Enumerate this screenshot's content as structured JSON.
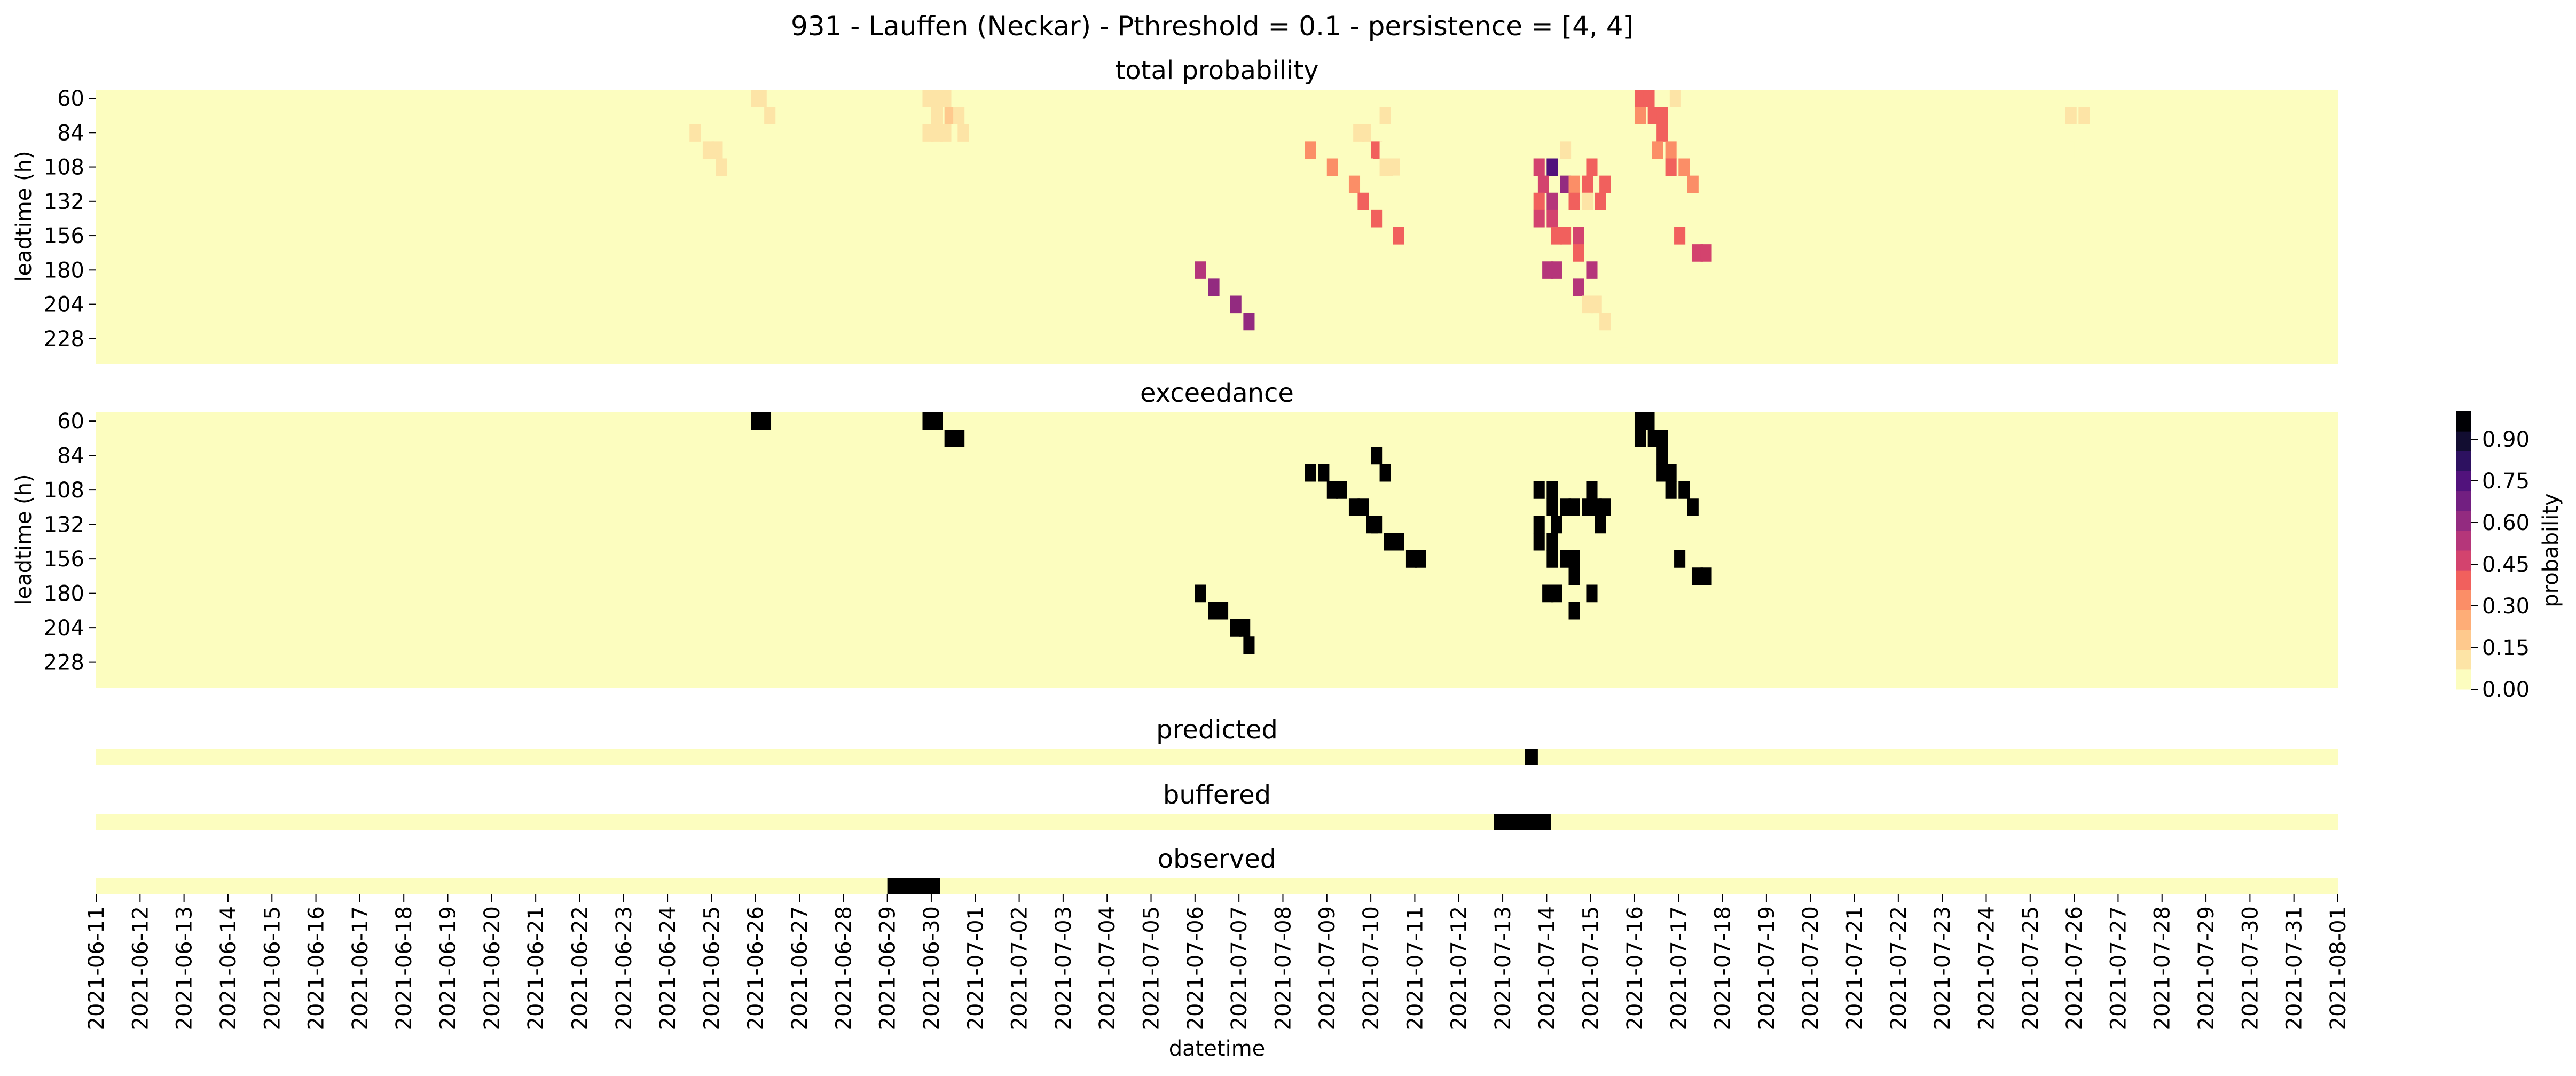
{
  "title": "931 - Lauffen (Neckar) - Pthreshold = 0.1 - persistence = [4, 4]",
  "colors": {
    "background_cell": "#fcfdbf",
    "binary_on": "#000000",
    "colormap": [
      "#fcfdbf",
      "#fde4a6",
      "#fec98d",
      "#fead77",
      "#fb8e67",
      "#f1605d",
      "#d3436e",
      "#b5367a",
      "#932b80",
      "#721f81",
      "#51127c",
      "#2d1160",
      "#120d31",
      "#000004"
    ]
  },
  "chart_data": [
    {
      "type": "heatmap",
      "title": "total probability",
      "ylabel": "leadtime (h)",
      "yticks": [
        "60",
        "84",
        "108",
        "132",
        "156",
        "180",
        "204",
        "228"
      ],
      "leadtime_range_h": [
        60,
        240
      ],
      "leadtime_step_h": 12,
      "time_range": [
        "2021-06-11",
        "2021-08-01"
      ],
      "cells": [
        {
          "day": 14.9,
          "lt": 60,
          "p": 0.12
        },
        {
          "day": 15.0,
          "lt": 60,
          "p": 0.12
        },
        {
          "day": 14.9,
          "lt": 72,
          "p": 0.06
        },
        {
          "day": 15.2,
          "lt": 72,
          "p": 0.1
        },
        {
          "day": 18.8,
          "lt": 60,
          "p": 0.08
        },
        {
          "day": 19.0,
          "lt": 60,
          "p": 0.12
        },
        {
          "day": 19.2,
          "lt": 60,
          "p": 0.1
        },
        {
          "day": 18.8,
          "lt": 72,
          "p": 0.06
        },
        {
          "day": 19.0,
          "lt": 72,
          "p": 0.1
        },
        {
          "day": 19.3,
          "lt": 72,
          "p": 0.2
        },
        {
          "day": 19.5,
          "lt": 72,
          "p": 0.12
        },
        {
          "day": 18.8,
          "lt": 84,
          "p": 0.1
        },
        {
          "day": 19.0,
          "lt": 84,
          "p": 0.1
        },
        {
          "day": 19.2,
          "lt": 84,
          "p": 0.1
        },
        {
          "day": 19.6,
          "lt": 84,
          "p": 0.08
        },
        {
          "day": 13.5,
          "lt": 84,
          "p": 0.08
        },
        {
          "day": 13.8,
          "lt": 96,
          "p": 0.12
        },
        {
          "day": 14.0,
          "lt": 96,
          "p": 0.1
        },
        {
          "day": 14.1,
          "lt": 108,
          "p": 0.08
        },
        {
          "day": 28.8,
          "lt": 60,
          "p": 0.06
        },
        {
          "day": 29.0,
          "lt": 60,
          "p": 0.06
        },
        {
          "day": 29.2,
          "lt": 60,
          "p": 0.06
        },
        {
          "day": 28.8,
          "lt": 72,
          "p": 0.06
        },
        {
          "day": 29.0,
          "lt": 72,
          "p": 0.06
        },
        {
          "day": 29.2,
          "lt": 72,
          "p": 0.1
        },
        {
          "day": 28.6,
          "lt": 84,
          "p": 0.1
        },
        {
          "day": 28.8,
          "lt": 84,
          "p": 0.12
        },
        {
          "day": 29.0,
          "lt": 84,
          "p": 0.06
        },
        {
          "day": 29.2,
          "lt": 84,
          "p": 0.06
        },
        {
          "day": 29.0,
          "lt": 96,
          "p": 0.4
        },
        {
          "day": 29.2,
          "lt": 96,
          "p": 0.06
        },
        {
          "day": 28.8,
          "lt": 108,
          "p": 0.06
        },
        {
          "day": 29.2,
          "lt": 108,
          "p": 0.1
        },
        {
          "day": 29.4,
          "lt": 108,
          "p": 0.08
        },
        {
          "day": 29.5,
          "lt": 120,
          "p": 0.06
        },
        {
          "day": 28.5,
          "lt": 120,
          "p": 0.06
        },
        {
          "day": 28.3,
          "lt": 132,
          "p": 0.06
        },
        {
          "day": 27.5,
          "lt": 96,
          "p": 0.35
        },
        {
          "day": 28.0,
          "lt": 108,
          "p": 0.35
        },
        {
          "day": 28.5,
          "lt": 120,
          "p": 0.35
        },
        {
          "day": 28.7,
          "lt": 132,
          "p": 0.4
        },
        {
          "day": 29.0,
          "lt": 144,
          "p": 0.4
        },
        {
          "day": 29.5,
          "lt": 156,
          "p": 0.4
        },
        {
          "day": 25.0,
          "lt": 180,
          "p": 0.55
        },
        {
          "day": 25.3,
          "lt": 192,
          "p": 0.6
        },
        {
          "day": 25.8,
          "lt": 204,
          "p": 0.6
        },
        {
          "day": 26.1,
          "lt": 216,
          "p": 0.6
        },
        {
          "day": 32.7,
          "lt": 108,
          "p": 0.45
        },
        {
          "day": 33.0,
          "lt": 108,
          "p": 0.75
        },
        {
          "day": 33.3,
          "lt": 96,
          "p": 0.1
        },
        {
          "day": 33.3,
          "lt": 120,
          "p": 0.6
        },
        {
          "day": 32.8,
          "lt": 120,
          "p": 0.45
        },
        {
          "day": 33.0,
          "lt": 132,
          "p": 0.5
        },
        {
          "day": 32.7,
          "lt": 132,
          "p": 0.4
        },
        {
          "day": 33.0,
          "lt": 144,
          "p": 0.45
        },
        {
          "day": 32.7,
          "lt": 144,
          "p": 0.45
        },
        {
          "day": 33.5,
          "lt": 120,
          "p": 0.35
        },
        {
          "day": 33.5,
          "lt": 132,
          "p": 0.4
        },
        {
          "day": 33.9,
          "lt": 108,
          "p": 0.4
        },
        {
          "day": 33.8,
          "lt": 120,
          "p": 0.4
        },
        {
          "day": 34.2,
          "lt": 120,
          "p": 0.4
        },
        {
          "day": 34.1,
          "lt": 132,
          "p": 0.4
        },
        {
          "day": 33.8,
          "lt": 132,
          "p": 0.1
        },
        {
          "day": 33.3,
          "lt": 156,
          "p": 0.4
        },
        {
          "day": 33.6,
          "lt": 156,
          "p": 0.45
        },
        {
          "day": 33.6,
          "lt": 168,
          "p": 0.4
        },
        {
          "day": 33.1,
          "lt": 156,
          "p": 0.4
        },
        {
          "day": 32.9,
          "lt": 180,
          "p": 0.55
        },
        {
          "day": 33.1,
          "lt": 180,
          "p": 0.5
        },
        {
          "day": 33.9,
          "lt": 180,
          "p": 0.5
        },
        {
          "day": 33.6,
          "lt": 192,
          "p": 0.5
        },
        {
          "day": 33.8,
          "lt": 204,
          "p": 0.1
        },
        {
          "day": 34.0,
          "lt": 204,
          "p": 0.1
        },
        {
          "day": 34.2,
          "lt": 216,
          "p": 0.1
        },
        {
          "day": 34.6,
          "lt": 228,
          "p": 0.06
        },
        {
          "day": 35.0,
          "lt": 60,
          "p": 0.4
        },
        {
          "day": 35.2,
          "lt": 60,
          "p": 0.4
        },
        {
          "day": 35.0,
          "lt": 72,
          "p": 0.35
        },
        {
          "day": 35.3,
          "lt": 72,
          "p": 0.4
        },
        {
          "day": 35.5,
          "lt": 72,
          "p": 0.4
        },
        {
          "day": 35.5,
          "lt": 84,
          "p": 0.4
        },
        {
          "day": 35.4,
          "lt": 96,
          "p": 0.35
        },
        {
          "day": 35.7,
          "lt": 96,
          "p": 0.35
        },
        {
          "day": 35.7,
          "lt": 108,
          "p": 0.4
        },
        {
          "day": 36.0,
          "lt": 108,
          "p": 0.35
        },
        {
          "day": 35.8,
          "lt": 60,
          "p": 0.1
        },
        {
          "day": 36.2,
          "lt": 120,
          "p": 0.35
        },
        {
          "day": 35.9,
          "lt": 156,
          "p": 0.4
        },
        {
          "day": 36.3,
          "lt": 168,
          "p": 0.45
        },
        {
          "day": 36.5,
          "lt": 168,
          "p": 0.45
        },
        {
          "day": 44.8,
          "lt": 60,
          "p": 0.06
        },
        {
          "day": 44.8,
          "lt": 72,
          "p": 0.08
        },
        {
          "day": 45.1,
          "lt": 72,
          "p": 0.08
        },
        {
          "day": 44.9,
          "lt": 84,
          "p": 0.06
        },
        {
          "day": 45.0,
          "lt": 96,
          "p": 0.06
        },
        {
          "day": 44.8,
          "lt": 108,
          "p": 0.06
        },
        {
          "day": 45.2,
          "lt": 120,
          "p": 0.06
        }
      ]
    },
    {
      "type": "heatmap",
      "title": "exceedance",
      "ylabel": "leadtime (h)",
      "yticks": [
        "60",
        "84",
        "108",
        "132",
        "156",
        "180",
        "204",
        "228"
      ],
      "cells": [
        {
          "day": 14.9,
          "lt": 60
        },
        {
          "day": 15.1,
          "lt": 60
        },
        {
          "day": 18.8,
          "lt": 60
        },
        {
          "day": 19.0,
          "lt": 60
        },
        {
          "day": 19.3,
          "lt": 72
        },
        {
          "day": 19.5,
          "lt": 72
        },
        {
          "day": 29.0,
          "lt": 84
        },
        {
          "day": 29.2,
          "lt": 96
        },
        {
          "day": 27.5,
          "lt": 96
        },
        {
          "day": 27.8,
          "lt": 96
        },
        {
          "day": 28.0,
          "lt": 108
        },
        {
          "day": 28.2,
          "lt": 108
        },
        {
          "day": 28.5,
          "lt": 120
        },
        {
          "day": 28.7,
          "lt": 120
        },
        {
          "day": 29.0,
          "lt": 132
        },
        {
          "day": 29.3,
          "lt": 144
        },
        {
          "day": 29.5,
          "lt": 144
        },
        {
          "day": 29.8,
          "lt": 156
        },
        {
          "day": 30.0,
          "lt": 156
        },
        {
          "day": 28.9,
          "lt": 132
        },
        {
          "day": 25.0,
          "lt": 180
        },
        {
          "day": 25.3,
          "lt": 192
        },
        {
          "day": 25.5,
          "lt": 192
        },
        {
          "day": 25.8,
          "lt": 204
        },
        {
          "day": 26.0,
          "lt": 204
        },
        {
          "day": 26.1,
          "lt": 216
        },
        {
          "day": 32.7,
          "lt": 108
        },
        {
          "day": 33.0,
          "lt": 108
        },
        {
          "day": 33.0,
          "lt": 120
        },
        {
          "day": 33.3,
          "lt": 120
        },
        {
          "day": 33.5,
          "lt": 120
        },
        {
          "day": 33.8,
          "lt": 120
        },
        {
          "day": 34.0,
          "lt": 120
        },
        {
          "day": 34.2,
          "lt": 120
        },
        {
          "day": 33.9,
          "lt": 108
        },
        {
          "day": 34.1,
          "lt": 132
        },
        {
          "day": 32.7,
          "lt": 132
        },
        {
          "day": 33.1,
          "lt": 132
        },
        {
          "day": 32.7,
          "lt": 144
        },
        {
          "day": 33.0,
          "lt": 144
        },
        {
          "day": 33.0,
          "lt": 156
        },
        {
          "day": 33.3,
          "lt": 156
        },
        {
          "day": 33.5,
          "lt": 156
        },
        {
          "day": 33.5,
          "lt": 168
        },
        {
          "day": 32.9,
          "lt": 180
        },
        {
          "day": 33.1,
          "lt": 180
        },
        {
          "day": 33.9,
          "lt": 180
        },
        {
          "day": 33.5,
          "lt": 192
        },
        {
          "day": 35.0,
          "lt": 60
        },
        {
          "day": 35.2,
          "lt": 60
        },
        {
          "day": 35.0,
          "lt": 72
        },
        {
          "day": 35.3,
          "lt": 72
        },
        {
          "day": 35.5,
          "lt": 72
        },
        {
          "day": 35.5,
          "lt": 84
        },
        {
          "day": 35.5,
          "lt": 96
        },
        {
          "day": 35.7,
          "lt": 96
        },
        {
          "day": 35.7,
          "lt": 108
        },
        {
          "day": 36.0,
          "lt": 108
        },
        {
          "day": 36.2,
          "lt": 120
        },
        {
          "day": 35.9,
          "lt": 156
        },
        {
          "day": 36.3,
          "lt": 168
        },
        {
          "day": 36.5,
          "lt": 168
        }
      ]
    },
    {
      "type": "heatmap",
      "title": "predicted",
      "segments": [
        {
          "start": 32.5,
          "end": 32.8
        }
      ]
    },
    {
      "type": "heatmap",
      "title": "buffered",
      "segments": [
        {
          "start": 31.8,
          "end": 33.1
        }
      ]
    },
    {
      "type": "heatmap",
      "title": "observed",
      "segments": [
        {
          "start": 18.0,
          "end": 19.2
        }
      ]
    }
  ],
  "xaxis": {
    "label": "datetime",
    "start": "2021-06-11",
    "ticks": [
      "2021-06-11",
      "2021-06-12",
      "2021-06-13",
      "2021-06-14",
      "2021-06-15",
      "2021-06-16",
      "2021-06-17",
      "2021-06-18",
      "2021-06-19",
      "2021-06-20",
      "2021-06-21",
      "2021-06-22",
      "2021-06-23",
      "2021-06-24",
      "2021-06-25",
      "2021-06-26",
      "2021-06-27",
      "2021-06-28",
      "2021-06-29",
      "2021-06-30",
      "2021-07-01",
      "2021-07-02",
      "2021-07-03",
      "2021-07-04",
      "2021-07-05",
      "2021-07-06",
      "2021-07-07",
      "2021-07-08",
      "2021-07-09",
      "2021-07-10",
      "2021-07-11",
      "2021-07-12",
      "2021-07-13",
      "2021-07-14",
      "2021-07-15",
      "2021-07-16",
      "2021-07-17",
      "2021-07-18",
      "2021-07-19",
      "2021-07-20",
      "2021-07-21",
      "2021-07-22",
      "2021-07-23",
      "2021-07-24",
      "2021-07-25",
      "2021-07-26",
      "2021-07-27",
      "2021-07-28",
      "2021-07-29",
      "2021-07-30",
      "2021-07-31",
      "2021-08-01"
    ]
  },
  "colorbar": {
    "label": "probability",
    "range": [
      0,
      1
    ],
    "ticks": [
      "0.00",
      "0.15",
      "0.30",
      "0.45",
      "0.60",
      "0.75",
      "0.90"
    ],
    "tick_values": [
      0,
      0.15,
      0.3,
      0.45,
      0.6,
      0.75,
      0.9
    ]
  }
}
